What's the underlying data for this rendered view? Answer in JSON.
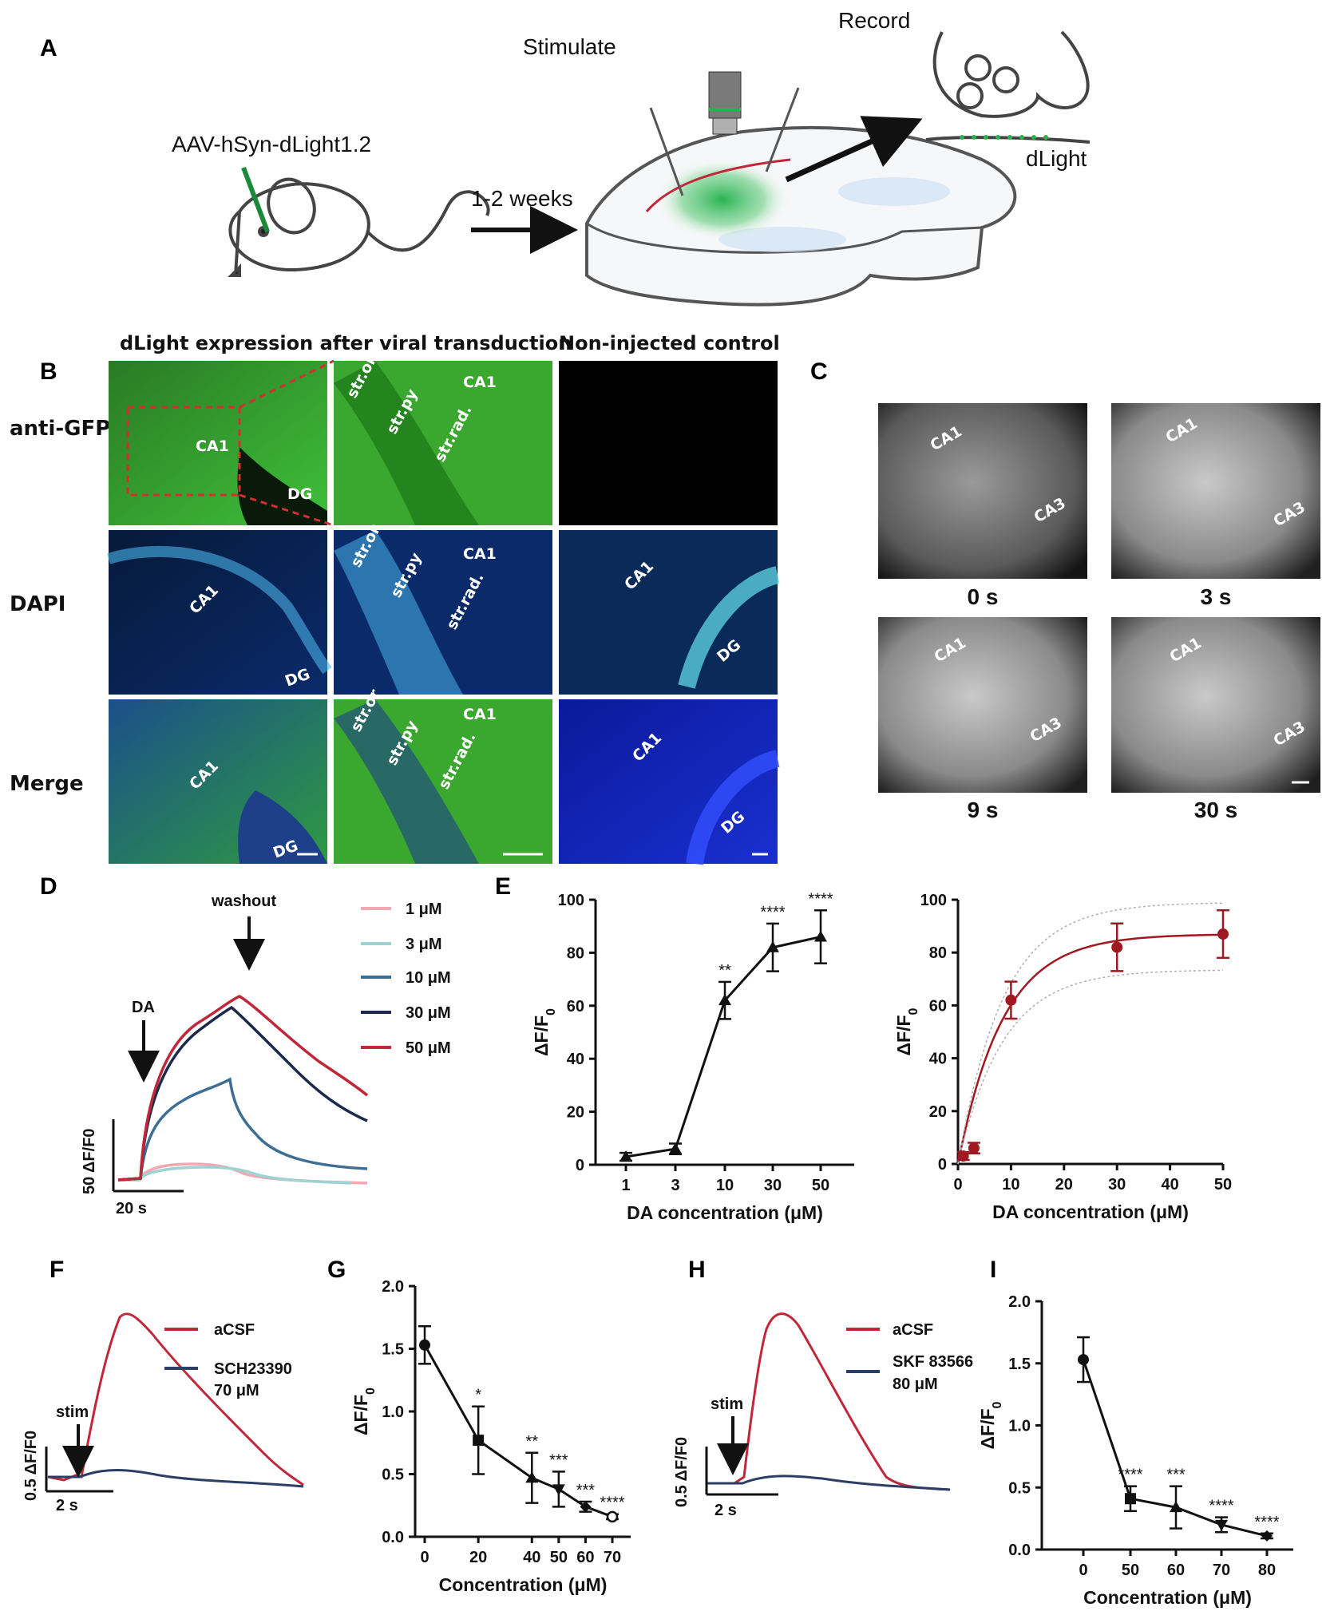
{
  "panelA": {
    "letter": "A",
    "virus": "AAV-hSyn-dLight1.2",
    "duration": "1-2 weeks",
    "stimulate": "Stimulate",
    "record": "Record",
    "sensor": "dLight"
  },
  "panelB": {
    "letter": "B",
    "header_left": "dLight expression after viral transduction",
    "header_right": "Non-injected control",
    "rows": [
      "anti-GFP",
      "DAPI",
      "Merge"
    ],
    "regions": {
      "ca1": "CA1",
      "dg": "DG",
      "str_or": "str.or",
      "str_py": "str.py",
      "str_rad": "str.rad."
    }
  },
  "panelC": {
    "letter": "C",
    "times": [
      "0 s",
      "3 s",
      "9 s",
      "30 s"
    ],
    "regions": {
      "ca1": "CA1",
      "ca3": "CA3"
    }
  },
  "panelD": {
    "letter": "D",
    "washout": "washout",
    "da": "DA",
    "scale_y": "50 ΔF/F0",
    "scale_x": "20 s",
    "legend": [
      {
        "label": "1 μM",
        "color": "#f2a7b3"
      },
      {
        "label": "3 μM",
        "color": "#9ed3d1"
      },
      {
        "label": "10 μM",
        "color": "#3d6f94"
      },
      {
        "label": "30 μM",
        "color": "#1b2a4a"
      },
      {
        "label": "50 μM",
        "color": "#c0283a"
      }
    ]
  },
  "panelE": {
    "letter": "E"
  },
  "panelF": {
    "letter": "F",
    "legend": [
      {
        "label": "aCSF",
        "color": "#c0283a"
      },
      {
        "label": "SCH23390",
        "label2": "70 μM",
        "color": "#2c3e66"
      }
    ],
    "stim": "stim",
    "scale_y": "0.5 ΔF/F0",
    "scale_x": "2 s"
  },
  "panelG": {
    "letter": "G"
  },
  "panelH": {
    "letter": "H",
    "legend": [
      {
        "label": "aCSF",
        "color": "#c0283a"
      },
      {
        "label": "SKF 83566",
        "label2": "80 μM",
        "color": "#2c3e66"
      }
    ],
    "stim": "stim",
    "scale_y": "0.5 ΔF/F0",
    "scale_x": "2 s"
  },
  "panelI": {
    "letter": "I"
  },
  "chart_data": [
    {
      "id": "E-left",
      "type": "line",
      "categories": [
        "1",
        "3",
        "10",
        "30",
        "50"
      ],
      "values": [
        3,
        6,
        62,
        82,
        86
      ],
      "errors": [
        1.5,
        2,
        7,
        9,
        10
      ],
      "significance": [
        "",
        "",
        "**",
        "****",
        "****"
      ],
      "xlabel": "DA concentration (μM)",
      "ylabel": "ΔF/F0",
      "ylim": [
        0,
        100
      ],
      "yticks": [
        0,
        20,
        40,
        60,
        80,
        100
      ]
    },
    {
      "id": "E-right",
      "type": "scatter",
      "x": [
        1,
        3,
        10,
        30,
        50
      ],
      "values": [
        3,
        6,
        62,
        82,
        87
      ],
      "errors": [
        1.5,
        2,
        7,
        9,
        9
      ],
      "fit": "saturation curve",
      "xlabel": "DA concentration (μM)",
      "ylabel": "ΔF/F0",
      "xlim": [
        0,
        50
      ],
      "ylim": [
        0,
        100
      ],
      "xticks": [
        0,
        10,
        20,
        30,
        40,
        50
      ],
      "yticks": [
        0,
        20,
        40,
        60,
        80,
        100
      ]
    },
    {
      "id": "G",
      "type": "line",
      "x": [
        0,
        20,
        40,
        50,
        60,
        70
      ],
      "values": [
        1.53,
        0.77,
        0.47,
        0.38,
        0.24,
        0.16
      ],
      "errors": [
        0.15,
        0.27,
        0.2,
        0.14,
        0.04,
        0.02
      ],
      "significance": [
        "",
        "*",
        "**",
        "***",
        "***",
        "****"
      ],
      "xlabel": "Concentration (μM)",
      "ylabel": "ΔF/F0",
      "xlim": [
        0,
        70
      ],
      "ylim": [
        0,
        2.0
      ],
      "xticks": [
        0,
        20,
        40,
        50,
        60,
        70
      ],
      "yticks": [
        "0.0",
        "0.5",
        "1.0",
        "1.5",
        "2.0"
      ]
    },
    {
      "id": "I",
      "type": "line",
      "x": [
        0,
        50,
        60,
        70,
        80
      ],
      "values": [
        1.53,
        0.41,
        0.34,
        0.2,
        0.11
      ],
      "errors": [
        0.18,
        0.1,
        0.17,
        0.06,
        0.02
      ],
      "significance": [
        "",
        "****",
        "***",
        "****",
        "****"
      ],
      "xlabel": "Concentration (μM)",
      "ylabel": "ΔF/F0",
      "ylim": [
        0,
        2.0
      ],
      "yticks": [
        "0.0",
        "0.5",
        "1.0",
        "1.5",
        "2.0"
      ]
    }
  ]
}
